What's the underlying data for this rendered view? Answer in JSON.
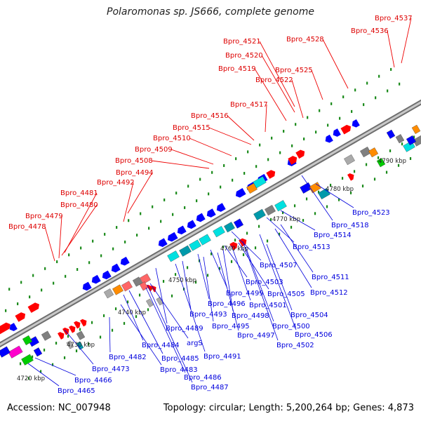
{
  "title": "Polaromonas sp. JS666, complete genome",
  "footer": {
    "accession": "Accession: NC_007948",
    "summary": "Topology: circular; Length: 5,200,264 bp; Genes: 4,873"
  },
  "colors": {
    "label_upper": "#e00000",
    "label_lower": "#0000dd",
    "tick_major": "#1a8a1a",
    "backbone": "#8a8a8a"
  },
  "scale": {
    "unit": "kbp",
    "ticks": [
      "4720 kbp",
      "4730 kbp",
      "4740 kbp",
      "4750 kbp",
      "4760 kbp",
      "4770 kbp",
      "4780 kbp",
      "4790 kbp"
    ]
  },
  "labels_upper": [
    "Bpro_4537",
    "Bpro_4536",
    "Bpro_4528",
    "Bpro_4521",
    "Bpro_4520",
    "Bpro_4519",
    "Bpro_4525",
    "Bpro_4522",
    "Bpro_4517",
    "Bpro_4516",
    "Bpro_4515",
    "Bpro_4510",
    "Bpro_4509",
    "Bpro_4508",
    "Bpro_4494",
    "Bpro_4492",
    "Bpro_4481",
    "Bpro_4480",
    "Bpro_4479",
    "Bpro_4478"
  ],
  "labels_lower": [
    "Bpro_4523",
    "Bpro_4518",
    "Bpro_4514",
    "Bpro_4513",
    "Bpro_4507",
    "Bpro_4511",
    "Bpro_4512",
    "Bpro_4503",
    "Bpro_4505",
    "Bpro_4499",
    "Bpro_4501",
    "Bpro_4496",
    "Bpro_4498",
    "Bpro_4504",
    "Bpro_4493",
    "Bpro_4500",
    "Bpro_4495",
    "Bpro_4497",
    "Bpro_4506",
    "Bpro_4502",
    "Bpro_4489",
    "argS",
    "Bpro_4491",
    "Bpro_4484",
    "Bpro_4485",
    "Bpro_4482",
    "Bpro_4483",
    "Bpro_4486",
    "Bpro_4487",
    "Bpro_4473",
    "Bpro_4466",
    "Bpro_4465"
  ]
}
